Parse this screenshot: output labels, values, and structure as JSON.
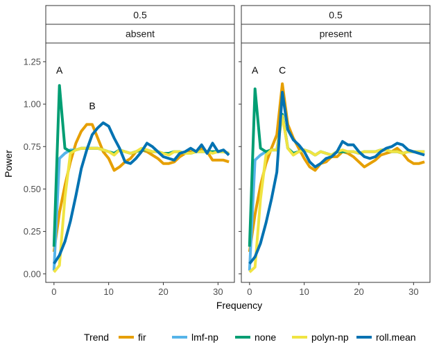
{
  "chart_data": {
    "type": "line",
    "facet_rows": [
      "0.5",
      "0.5"
    ],
    "facet_cols": [
      "absent",
      "present"
    ],
    "xlabel": "Frequency",
    "ylabel": "Power",
    "xlim": [
      -1.5,
      33
    ],
    "ylim": [
      -0.05,
      1.36
    ],
    "x_ticks": [
      0,
      10,
      20,
      30
    ],
    "x_tick_labels": [
      "0",
      "10",
      "20",
      "30"
    ],
    "y_ticks": [
      0,
      0.25,
      0.5,
      0.75,
      1.0,
      1.25
    ],
    "y_tick_labels": [
      "0.00",
      "0.25",
      "0.50",
      "0.75",
      "1.00",
      "1.25"
    ],
    "grid": false,
    "legend": {
      "title": "Trend",
      "position": "bottom",
      "entries": [
        "fir",
        "lmf-np",
        "none",
        "polyn-np",
        "roll.mean"
      ]
    },
    "series_colors": {
      "fir": "#E69F00",
      "lmf-np": "#56B4E9",
      "none": "#009E73",
      "polyn-np": "#F0E442",
      "roll.mean": "#0072B2"
    },
    "x": [
      0,
      1,
      2,
      3,
      4,
      5,
      6,
      7,
      8,
      9,
      10,
      11,
      12,
      13,
      14,
      15,
      16,
      17,
      18,
      19,
      20,
      21,
      22,
      23,
      24,
      25,
      26,
      27,
      28,
      29,
      30,
      31,
      32
    ],
    "panels": [
      {
        "strip_top": "0.5",
        "strip_bottom": "absent",
        "annotations": [
          {
            "label": "A",
            "x": 1,
            "y": 1.2
          },
          {
            "label": "B",
            "x": 7,
            "y": 0.99
          }
        ],
        "series": [
          {
            "name": "fir",
            "values": [
              0.13,
              0.36,
              0.52,
              0.66,
              0.77,
              0.84,
              0.88,
              0.88,
              0.8,
              0.72,
              0.68,
              0.61,
              0.63,
              0.66,
              0.68,
              0.72,
              0.73,
              0.72,
              0.7,
              0.68,
              0.65,
              0.65,
              0.66,
              0.69,
              0.71,
              0.72,
              0.72,
              0.74,
              0.72,
              0.67,
              0.67,
              0.67,
              0.66
            ]
          },
          {
            "name": "lmf-np",
            "values": [
              0.02,
              0.68,
              0.71,
              0.73,
              0.73,
              0.74,
              0.74,
              0.74,
              0.74,
              0.73,
              0.72,
              0.71,
              0.73,
              0.72,
              0.71,
              0.72,
              0.73,
              0.73,
              0.72,
              0.72,
              0.71,
              0.71,
              0.72,
              0.72,
              0.71,
              0.71,
              0.72,
              0.72,
              0.72,
              0.72,
              0.72,
              0.72,
              0.71
            ]
          },
          {
            "name": "none",
            "values": [
              0.16,
              1.11,
              0.74,
              0.72,
              0.73,
              0.74,
              0.74,
              0.74,
              0.74,
              0.73,
              0.72,
              0.71,
              0.73,
              0.72,
              0.71,
              0.72,
              0.73,
              0.73,
              0.72,
              0.72,
              0.71,
              0.71,
              0.72,
              0.72,
              0.71,
              0.71,
              0.72,
              0.72,
              0.72,
              0.72,
              0.72,
              0.72,
              0.71
            ]
          },
          {
            "name": "polyn-np",
            "values": [
              0.01,
              0.05,
              0.45,
              0.71,
              0.73,
              0.74,
              0.74,
              0.74,
              0.74,
              0.73,
              0.72,
              0.7,
              0.73,
              0.72,
              0.71,
              0.72,
              0.74,
              0.73,
              0.72,
              0.72,
              0.71,
              0.7,
              0.72,
              0.72,
              0.71,
              0.71,
              0.72,
              0.72,
              0.72,
              0.71,
              0.72,
              0.72,
              0.71
            ]
          },
          {
            "name": "roll.mean",
            "values": [
              0.06,
              0.11,
              0.19,
              0.31,
              0.46,
              0.62,
              0.73,
              0.82,
              0.86,
              0.89,
              0.87,
              0.8,
              0.74,
              0.66,
              0.65,
              0.68,
              0.72,
              0.77,
              0.75,
              0.72,
              0.69,
              0.68,
              0.67,
              0.71,
              0.72,
              0.74,
              0.72,
              0.76,
              0.71,
              0.77,
              0.72,
              0.73,
              0.7
            ]
          }
        ]
      },
      {
        "strip_top": "0.5",
        "strip_bottom": "present",
        "annotations": [
          {
            "label": "A",
            "x": 1,
            "y": 1.2
          },
          {
            "label": "C",
            "x": 6,
            "y": 1.2
          }
        ],
        "series": [
          {
            "name": "fir",
            "values": [
              0.13,
              0.35,
              0.52,
              0.65,
              0.74,
              0.82,
              1.12,
              0.88,
              0.8,
              0.74,
              0.68,
              0.63,
              0.61,
              0.65,
              0.66,
              0.69,
              0.69,
              0.72,
              0.71,
              0.69,
              0.66,
              0.63,
              0.65,
              0.67,
              0.7,
              0.71,
              0.72,
              0.74,
              0.71,
              0.67,
              0.65,
              0.65,
              0.66
            ]
          },
          {
            "name": "lmf-np",
            "values": [
              0.02,
              0.67,
              0.7,
              0.72,
              0.73,
              0.73,
              0.94,
              0.74,
              0.71,
              0.72,
              0.73,
              0.72,
              0.7,
              0.72,
              0.71,
              0.7,
              0.72,
              0.72,
              0.72,
              0.72,
              0.71,
              0.72,
              0.72,
              0.72,
              0.73,
              0.73,
              0.72,
              0.72,
              0.71,
              0.72,
              0.72,
              0.72,
              0.72
            ]
          },
          {
            "name": "none",
            "values": [
              0.16,
              1.09,
              0.74,
              0.72,
              0.73,
              0.73,
              0.94,
              0.74,
              0.71,
              0.72,
              0.73,
              0.72,
              0.7,
              0.72,
              0.71,
              0.7,
              0.72,
              0.72,
              0.72,
              0.72,
              0.71,
              0.72,
              0.72,
              0.72,
              0.73,
              0.73,
              0.72,
              0.72,
              0.71,
              0.72,
              0.72,
              0.72,
              0.72
            ]
          },
          {
            "name": "polyn-np",
            "values": [
              0.01,
              0.04,
              0.44,
              0.7,
              0.73,
              0.73,
              0.93,
              0.74,
              0.7,
              0.72,
              0.73,
              0.72,
              0.7,
              0.72,
              0.71,
              0.7,
              0.72,
              0.73,
              0.72,
              0.72,
              0.71,
              0.72,
              0.72,
              0.72,
              0.73,
              0.73,
              0.72,
              0.72,
              0.71,
              0.72,
              0.72,
              0.72,
              0.72
            ]
          },
          {
            "name": "roll.mean",
            "values": [
              0.06,
              0.1,
              0.18,
              0.3,
              0.44,
              0.6,
              1.07,
              0.85,
              0.79,
              0.76,
              0.72,
              0.66,
              0.63,
              0.65,
              0.68,
              0.69,
              0.72,
              0.78,
              0.76,
              0.76,
              0.72,
              0.69,
              0.68,
              0.69,
              0.72,
              0.74,
              0.75,
              0.77,
              0.76,
              0.73,
              0.72,
              0.71,
              0.7
            ]
          }
        ]
      }
    ]
  }
}
